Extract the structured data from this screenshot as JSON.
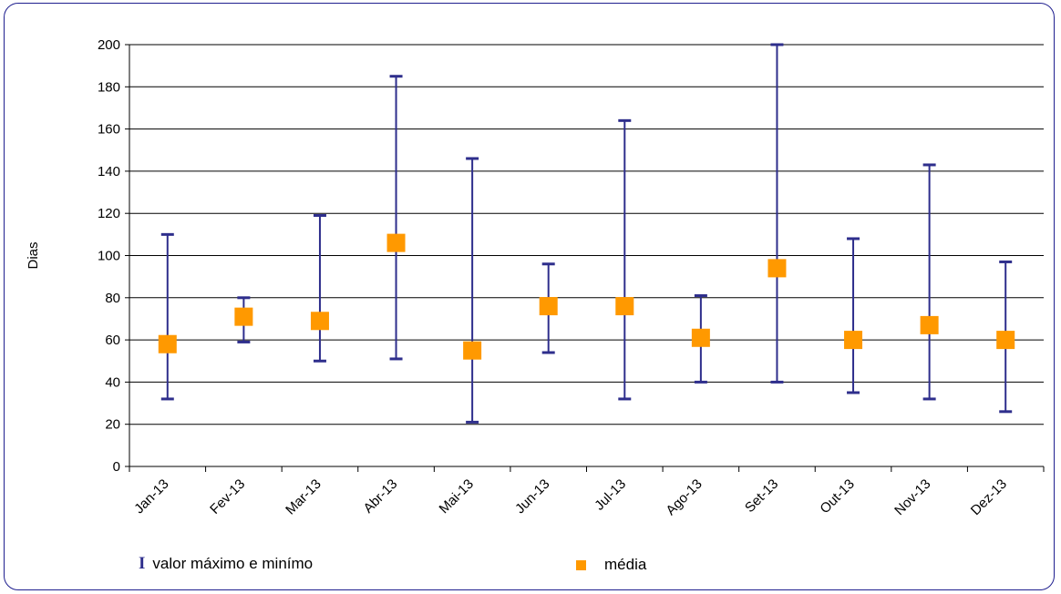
{
  "chart_data": {
    "type": "scatter",
    "ylabel": "Dias",
    "xlabel": "",
    "ylim": [
      0,
      200
    ],
    "yticks": [
      0,
      20,
      40,
      60,
      80,
      100,
      120,
      140,
      160,
      180,
      200
    ],
    "categories": [
      "Jan-13",
      "Fev-13",
      "Mar-13",
      "Abr-13",
      "Mai-13",
      "Jun-13",
      "Jul-13",
      "Ago-13",
      "Set-13",
      "Out-13",
      "Nov-13",
      "Dez-13"
    ],
    "series": [
      {
        "name": "média",
        "values": [
          58,
          71,
          69,
          106,
          55,
          76,
          76,
          61,
          94,
          60,
          67,
          60
        ]
      },
      {
        "name": "valor máximo e minímo",
        "max": [
          110,
          80,
          119,
          185,
          146,
          96,
          164,
          81,
          200,
          108,
          143,
          97
        ],
        "min": [
          32,
          59,
          50,
          51,
          21,
          54,
          32,
          40,
          40,
          35,
          32,
          26
        ]
      }
    ],
    "grid": true,
    "legend_position": "bottom",
    "colors": {
      "mean": "#ff9900",
      "range": "#2e2e8c",
      "grid": "#000000"
    }
  },
  "legend": {
    "range_symbol": "I",
    "range_label": "valor máximo e minímo",
    "mean_label": "média"
  }
}
